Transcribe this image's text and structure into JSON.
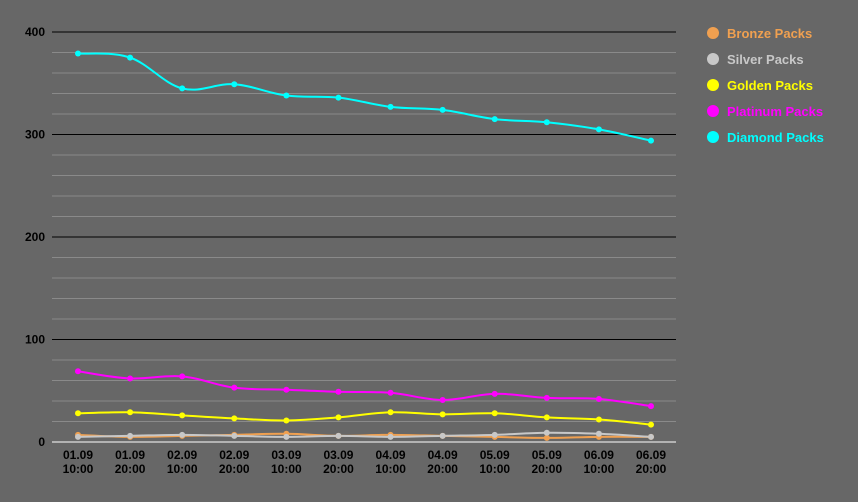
{
  "chart_data": {
    "type": "line",
    "title": "",
    "xlabel": "",
    "ylabel": "",
    "ylim": [
      0,
      400
    ],
    "yticks": [
      0,
      100,
      200,
      300,
      400
    ],
    "grid": true,
    "legend_position": "right",
    "categories": [
      [
        "01.09",
        "10:00"
      ],
      [
        "01.09",
        "20:00"
      ],
      [
        "02.09",
        "10:00"
      ],
      [
        "02.09",
        "20:00"
      ],
      [
        "03.09",
        "10:00"
      ],
      [
        "03.09",
        "20:00"
      ],
      [
        "04.09",
        "10:00"
      ],
      [
        "04.09",
        "20:00"
      ],
      [
        "05.09",
        "10:00"
      ],
      [
        "05.09",
        "20:00"
      ],
      [
        "06.09",
        "10:00"
      ],
      [
        "06.09",
        "20:00"
      ]
    ],
    "series": [
      {
        "name": "Bronze Packs",
        "color": "#f0a050",
        "values": [
          7,
          5,
          6,
          7,
          8,
          6,
          7,
          6,
          5,
          4,
          5,
          5
        ]
      },
      {
        "name": "Silver Packs",
        "color": "#c8c8c8",
        "values": [
          5,
          6,
          7,
          6,
          5,
          6,
          5,
          6,
          7,
          9,
          8,
          5
        ]
      },
      {
        "name": "Golden Packs",
        "color": "#ffff00",
        "values": [
          28,
          29,
          26,
          23,
          21,
          24,
          29,
          27,
          28,
          24,
          22,
          17
        ]
      },
      {
        "name": "Platinum Packs",
        "color": "#ff00ff",
        "values": [
          69,
          62,
          64,
          53,
          51,
          49,
          48,
          41,
          47,
          43,
          42,
          35
        ]
      },
      {
        "name": "Diamond Packs",
        "color": "#00ffff",
        "values": [
          379,
          375,
          345,
          349,
          338,
          336,
          327,
          324,
          315,
          312,
          305,
          294
        ]
      }
    ]
  }
}
